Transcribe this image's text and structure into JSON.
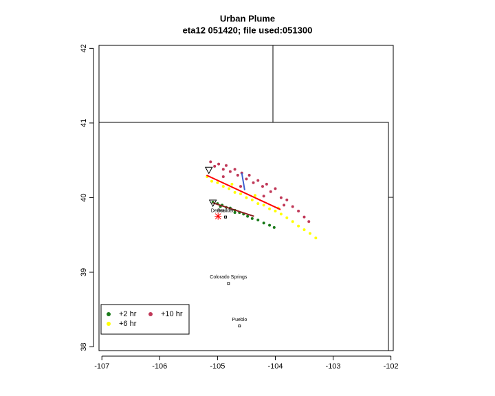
{
  "chart_data": {
    "type": "scatter",
    "title": "Urban Plume",
    "subtitle": "eta12 051420; file used:051300",
    "xlim": [
      -107.05,
      -101.96
    ],
    "ylim": [
      37.95,
      42.04
    ],
    "xticks": [
      -107,
      -106,
      -105,
      -104,
      -103,
      -102
    ],
    "yticks": [
      38,
      39,
      40,
      41,
      42
    ],
    "legend": "bottom-left",
    "series": [
      {
        "name": "+2 hr",
        "color": "#1a7a1a",
        "x": [
          -105.08,
          -105.0,
          -104.92,
          -104.85,
          -104.78,
          -104.7,
          -104.62,
          -104.55,
          -104.48,
          -104.4,
          -104.3,
          -104.2,
          -104.1,
          -104.02,
          -104.95,
          -104.7
        ],
        "y": [
          39.94,
          39.92,
          39.9,
          39.87,
          39.86,
          39.83,
          39.8,
          39.78,
          39.75,
          39.72,
          39.7,
          39.66,
          39.63,
          39.6,
          39.88,
          39.8
        ]
      },
      {
        "name": "+6 hr",
        "color": "#ffff00",
        "x": [
          -105.18,
          -105.1,
          -105.0,
          -104.9,
          -104.8,
          -104.7,
          -104.6,
          -104.5,
          -104.4,
          -104.3,
          -104.2,
          -104.1,
          -104.0,
          -103.9,
          -103.8,
          -103.7,
          -103.6,
          -103.5,
          -103.4,
          -103.3,
          -104.75,
          -104.35,
          -103.95
        ],
        "y": [
          40.28,
          40.22,
          40.2,
          40.15,
          40.12,
          40.07,
          40.05,
          40.0,
          39.97,
          39.92,
          39.9,
          39.85,
          39.82,
          39.78,
          39.73,
          39.68,
          39.62,
          39.57,
          39.52,
          39.46,
          40.18,
          40.03,
          39.86
        ]
      },
      {
        "name": "+10 hr",
        "color": "#c03858",
        "x": [
          -105.12,
          -105.05,
          -104.98,
          -104.9,
          -104.85,
          -104.78,
          -104.7,
          -104.65,
          -104.58,
          -104.5,
          -104.45,
          -104.38,
          -104.3,
          -104.22,
          -104.15,
          -104.08,
          -104.0,
          -103.9,
          -103.8,
          -103.7,
          -103.6,
          -103.5,
          -103.42,
          -104.6,
          -104.2,
          -103.85,
          -104.9
        ],
        "y": [
          40.48,
          40.42,
          40.45,
          40.38,
          40.43,
          40.35,
          40.38,
          40.3,
          40.33,
          40.25,
          40.3,
          40.2,
          40.23,
          40.15,
          40.18,
          40.08,
          40.12,
          40.0,
          39.97,
          39.88,
          39.82,
          39.74,
          39.68,
          40.15,
          40.02,
          39.9,
          40.28
        ]
      }
    ],
    "lines": [
      {
        "color": "#ff0000",
        "x": [
          -105.19,
          -103.91
        ],
        "y": [
          40.3,
          39.84
        ]
      },
      {
        "color": "#8b2020",
        "x": [
          -105.08,
          -104.37
        ],
        "y": [
          39.93,
          39.75
        ]
      },
      {
        "color": "#4060d0",
        "x": [
          -104.58,
          -104.53
        ],
        "y": [
          40.33,
          40.1
        ]
      }
    ],
    "cities": [
      {
        "name": "Denver",
        "x": -104.86,
        "y": 39.74
      },
      {
        "name": "Boulder",
        "x": -104.86,
        "y": 39.74
      },
      {
        "name": "Colorado Springs",
        "x": -104.81,
        "y": 38.85
      },
      {
        "name": "Pueblo",
        "x": -104.62,
        "y": 38.28
      }
    ],
    "source": {
      "color": "#ff0000",
      "x": -104.99,
      "y": 39.75
    },
    "stations": {
      "x": [
        -105.15,
        -105.08
      ],
      "y": [
        40.37,
        39.93
      ]
    }
  }
}
